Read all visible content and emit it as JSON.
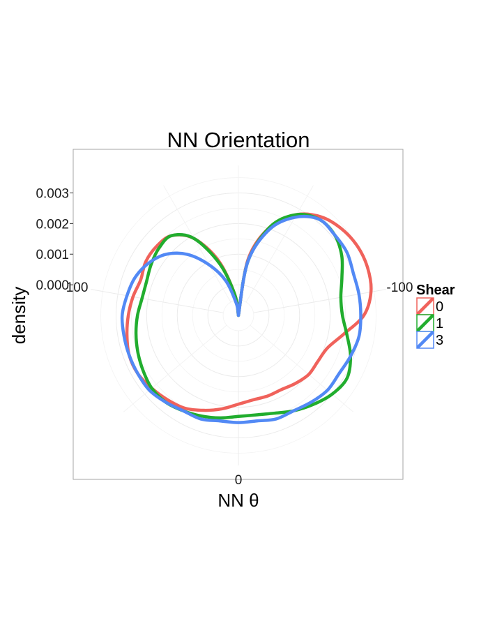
{
  "chart_data": {
    "type": "line",
    "coord": "polar",
    "title": "NN Orientation",
    "xlabel": "NN θ",
    "ylabel": "density",
    "theta_ticks": [
      {
        "value": 100,
        "label": "100"
      },
      {
        "value": 0,
        "label": "0"
      },
      {
        "value": -100,
        "label": "-100"
      }
    ],
    "r_ticks": [
      {
        "value": 0.0,
        "label": "0.000"
      },
      {
        "value": 0.001,
        "label": "0.001"
      },
      {
        "value": 0.002,
        "label": "0.002"
      },
      {
        "value": 0.003,
        "label": "0.003"
      }
    ],
    "r_range": [
      -0.001,
      0.0039
    ],
    "theta_domain": [
      -180,
      180
    ],
    "grid": true,
    "legend": {
      "title": "Shear",
      "position": "right"
    },
    "series": [
      {
        "name": "0",
        "color": "#F0625B",
        "theta": [
          -180,
          -170,
          -160,
          -150,
          -140,
          -130,
          -120,
          -110,
          -100,
          -90,
          -80,
          -70,
          -60,
          -50,
          -40,
          -30,
          -20,
          -10,
          0,
          10,
          20,
          30,
          40,
          50,
          60,
          70,
          80,
          90,
          100,
          110,
          120,
          130,
          140,
          150,
          160,
          170,
          180
        ],
        "density": [
          -0.001,
          0.0009,
          0.0021,
          0.0028,
          0.0032,
          0.0034,
          0.0035,
          0.0035,
          0.0034,
          0.0031,
          0.0025,
          0.0021,
          0.002,
          0.002,
          0.0019,
          0.0018,
          0.0018,
          0.0018,
          0.0019,
          0.0021,
          0.0023,
          0.0025,
          0.0026,
          0.0027,
          0.0028,
          0.0028,
          0.0027,
          0.0026,
          0.0025,
          0.0024,
          0.0025,
          0.0025,
          0.0024,
          0.0019,
          0.0009,
          -0.0003,
          -0.001
        ]
      },
      {
        "name": "1",
        "color": "#21AD2E",
        "theta": [
          -180,
          -170,
          -160,
          -150,
          -140,
          -130,
          -120,
          -110,
          -100,
          -90,
          -80,
          -70,
          -60,
          -50,
          -40,
          -30,
          -20,
          -10,
          0,
          10,
          20,
          30,
          40,
          50,
          60,
          70,
          80,
          90,
          100,
          110,
          120,
          130,
          140,
          150,
          160,
          170,
          180
        ],
        "density": [
          -0.001,
          0.0008,
          0.0021,
          0.0028,
          0.0031,
          0.0031,
          0.0029,
          0.0026,
          0.0024,
          0.0024,
          0.0026,
          0.0029,
          0.0031,
          0.003,
          0.0028,
          0.0026,
          0.0024,
          0.0023,
          0.0023,
          0.0024,
          0.0025,
          0.0026,
          0.0027,
          0.0027,
          0.0026,
          0.0025,
          0.0024,
          0.0023,
          0.0022,
          0.0022,
          0.0023,
          0.0024,
          0.0024,
          0.0019,
          0.0008,
          -0.0003,
          -0.001
        ]
      },
      {
        "name": "3",
        "color": "#5289F5",
        "theta": [
          -180,
          -170,
          -160,
          -150,
          -140,
          -130,
          -120,
          -110,
          -100,
          -90,
          -80,
          -70,
          -60,
          -50,
          -40,
          -30,
          -20,
          -10,
          0,
          10,
          20,
          30,
          40,
          50,
          60,
          70,
          80,
          90,
          100,
          110,
          120,
          130,
          140,
          150,
          160,
          170,
          180
        ],
        "density": [
          -0.001,
          0.0008,
          0.002,
          0.0027,
          0.0031,
          0.0031,
          0.0031,
          0.003,
          0.003,
          0.003,
          0.003,
          0.0029,
          0.0028,
          0.0028,
          0.0027,
          0.0026,
          0.0026,
          0.0025,
          0.0025,
          0.0025,
          0.0026,
          0.0026,
          0.0027,
          0.0028,
          0.0028,
          0.0028,
          0.0028,
          0.0028,
          0.0027,
          0.0026,
          0.0024,
          0.0021,
          0.0016,
          0.0009,
          0.0002,
          -0.0006,
          -0.001
        ]
      }
    ]
  }
}
